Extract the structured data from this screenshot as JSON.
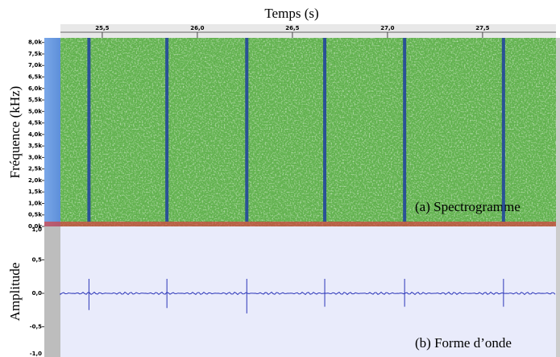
{
  "chart_data": [
    {
      "type": "spectrogram",
      "title": "Temps (s)",
      "y_label": "Fréquence (kHz)",
      "annotation": "(a)   Spectrogramme",
      "xlim": [
        25.28,
        27.886
      ],
      "xticks": [
        {
          "value": 25.5,
          "label": "25,5"
        },
        {
          "value": 26.0,
          "label": "26,0"
        },
        {
          "value": 26.5,
          "label": "26,5"
        },
        {
          "value": 27.0,
          "label": "27,0"
        },
        {
          "value": 27.5,
          "label": "27,5"
        }
      ],
      "ylim": [
        0,
        8.2
      ],
      "yticks": [
        {
          "value": 0,
          "label": "0,0k"
        },
        {
          "value": 0.5,
          "label": "0,5k"
        },
        {
          "value": 1,
          "label": "1,0k"
        },
        {
          "value": 1.5,
          "label": "1,5k"
        },
        {
          "value": 2,
          "label": "2,0k"
        },
        {
          "value": 2.5,
          "label": "2,5k"
        },
        {
          "value": 3,
          "label": "3,0k"
        },
        {
          "value": 3.5,
          "label": "3,5k"
        },
        {
          "value": 4,
          "label": "4,0k"
        },
        {
          "value": 4.5,
          "label": "4,5k"
        },
        {
          "value": 5,
          "label": "5,0k"
        },
        {
          "value": 5.5,
          "label": "5,5k"
        },
        {
          "value": 6,
          "label": "6,0k"
        },
        {
          "value": 6.5,
          "label": "6,5k"
        },
        {
          "value": 7,
          "label": "7,0k"
        },
        {
          "value": 7.5,
          "label": "7,5k"
        },
        {
          "value": 8,
          "label": "8,0k"
        }
      ],
      "x": [
        25.43,
        25.84,
        26.26,
        26.67,
        27.09,
        27.61
      ],
      "color": "#1f3fa0"
    },
    {
      "type": "line",
      "y_label": "Amplitude",
      "annotation": "(b)   Forme d’onde",
      "xlim": [
        25.28,
        27.886
      ],
      "ylim": [
        -1,
        1
      ],
      "yticks": [
        {
          "value": 1,
          "label": "1,0"
        },
        {
          "value": 0.5,
          "label": "0,5"
        },
        {
          "value": 0,
          "label": "0,0"
        },
        {
          "value": -0.5,
          "label": "-0,5"
        },
        {
          "value": -1,
          "label": "-1,0"
        }
      ],
      "x": [
        25.43,
        25.84,
        26.26,
        26.67,
        27.09,
        27.61
      ],
      "values": [
        -0.25,
        -0.22,
        -0.3,
        -0.2,
        -0.2,
        -0.2
      ],
      "color": "#2b35b8"
    }
  ]
}
